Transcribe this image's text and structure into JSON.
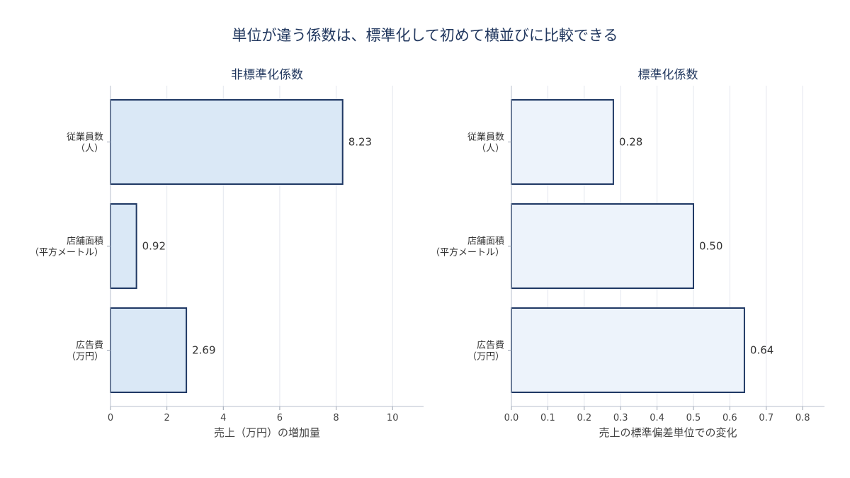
{
  "title": "単位が違う係数は、標準化して初めて横並びに比較できる",
  "chart_data": [
    {
      "type": "bar",
      "orientation": "horizontal",
      "title": "非標準化係数",
      "categories": [
        [
          "従業員数",
          "（人）"
        ],
        [
          "店舗面積",
          "（平方メートル）"
        ],
        [
          "広告費",
          "（万円）"
        ]
      ],
      "values": [
        8.23,
        0.92,
        2.69
      ],
      "data_labels": [
        "8.23",
        "0.92",
        "2.69"
      ],
      "xlabel": "売上（万円）の増加量",
      "ylabel": "",
      "xlim": [
        0,
        11.1
      ],
      "xticks": [
        0,
        2,
        4,
        6,
        8,
        10
      ],
      "xtick_labels": [
        "0",
        "2",
        "4",
        "6",
        "8",
        "10"
      ],
      "grid": "vertical",
      "bar_fill": "#dae8f6",
      "bar_stroke": "#1f3864"
    },
    {
      "type": "bar",
      "orientation": "horizontal",
      "title": "標準化係数",
      "categories": [
        [
          "従業員数",
          "（人）"
        ],
        [
          "店舗面積",
          "（平方メートル）"
        ],
        [
          "広告費",
          "（万円）"
        ]
      ],
      "values": [
        0.28,
        0.5,
        0.64
      ],
      "data_labels": [
        "0.28",
        "0.50",
        "0.64"
      ],
      "xlabel": "売上の標準偏差単位での変化",
      "ylabel": "",
      "xlim": [
        0,
        0.86
      ],
      "xticks": [
        0,
        0.1,
        0.2,
        0.3,
        0.4,
        0.5,
        0.6,
        0.7,
        0.8
      ],
      "xtick_labels": [
        "0.0",
        "0.1",
        "0.2",
        "0.3",
        "0.4",
        "0.5",
        "0.6",
        "0.7",
        "0.8"
      ],
      "grid": "vertical",
      "bar_fill": "#edf3fb",
      "bar_stroke": "#1f3864"
    }
  ]
}
